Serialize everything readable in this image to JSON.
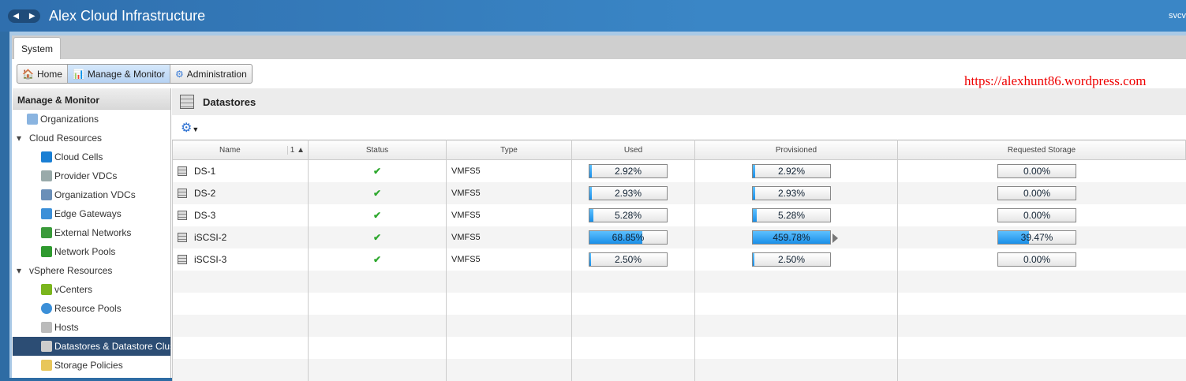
{
  "app": {
    "title": "Alex Cloud Infrastructure",
    "user": "svcv"
  },
  "tabs": [
    {
      "label": "System"
    }
  ],
  "toolbar": {
    "home": "Home",
    "manage": "Manage & Monitor",
    "admin": "Administration",
    "active": "Manage & Monitor"
  },
  "watermark": "https://alexhunt86.wordpress.com",
  "sidebar": {
    "title": "Manage & Monitor",
    "items": [
      {
        "label": "Organizations",
        "level": "l0",
        "icon": "cloud-icon"
      },
      {
        "label": "Cloud Resources",
        "level": "grp",
        "icon": "expand-arrow-icon"
      },
      {
        "label": "Cloud Cells",
        "level": "l1",
        "icon": "cloud-cells-icon"
      },
      {
        "label": "Provider VDCs",
        "level": "l1",
        "icon": "provider-vdc-icon"
      },
      {
        "label": "Organization VDCs",
        "level": "l1",
        "icon": "org-vdc-icon"
      },
      {
        "label": "Edge Gateways",
        "level": "l1",
        "icon": "shield-icon"
      },
      {
        "label": "External Networks",
        "level": "l1",
        "icon": "network-icon"
      },
      {
        "label": "Network Pools",
        "level": "l1",
        "icon": "network-pool-icon"
      },
      {
        "label": "vSphere Resources",
        "level": "grp",
        "icon": "expand-arrow-icon"
      },
      {
        "label": "vCenters",
        "level": "l1",
        "icon": "vcenter-icon"
      },
      {
        "label": "Resource Pools",
        "level": "l1",
        "icon": "resource-pool-icon"
      },
      {
        "label": "Hosts",
        "level": "l1",
        "icon": "host-icon"
      },
      {
        "label": "Datastores & Datastore Clusters",
        "level": "l1",
        "icon": "datastore-icon",
        "selected": true
      },
      {
        "label": "Storage Policies",
        "level": "l1",
        "icon": "storage-policy-icon"
      }
    ]
  },
  "main": {
    "title": "Datastores",
    "columns": [
      "Name",
      "Status",
      "Type",
      "Used",
      "Provisioned",
      "Requested Storage"
    ],
    "sort_indicator": "1 ▲",
    "rows": [
      {
        "name": "DS-1",
        "status": "ok",
        "type": "VMFS5",
        "used": 2.92,
        "provisioned": 2.92,
        "requested": 0.0
      },
      {
        "name": "DS-2",
        "status": "ok",
        "type": "VMFS5",
        "used": 2.93,
        "provisioned": 2.93,
        "requested": 0.0
      },
      {
        "name": "DS-3",
        "status": "ok",
        "type": "VMFS5",
        "used": 5.28,
        "provisioned": 5.28,
        "requested": 0.0
      },
      {
        "name": "iSCSI-2",
        "status": "ok",
        "type": "VMFS5",
        "used": 68.85,
        "provisioned": 459.78,
        "requested": 39.47
      },
      {
        "name": "iSCSI-3",
        "status": "ok",
        "type": "VMFS5",
        "used": 2.5,
        "provisioned": 2.5,
        "requested": 0.0
      }
    ]
  },
  "colors": {
    "header": "#3a86c6",
    "selected": "#2c4d74",
    "bar_fill": "#1b8fe8",
    "status_ok": "#2ea82e",
    "watermark": "#ee0000"
  }
}
